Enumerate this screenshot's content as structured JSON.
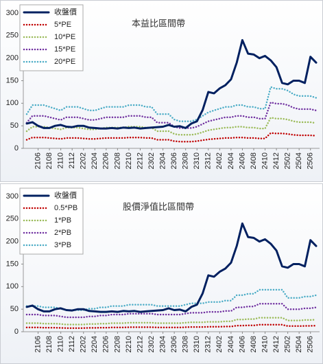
{
  "chart_data": [
    {
      "type": "line",
      "title": "本益比區間帶",
      "categories": [
        null,
        null,
        "2106",
        null,
        "2108",
        null,
        "2110",
        null,
        "2112",
        null,
        "2202",
        null,
        "2204",
        null,
        "2206",
        null,
        "2208",
        null,
        "2210",
        null,
        "2212",
        null,
        "2302",
        null,
        "2304",
        null,
        "2306",
        null,
        "2308",
        null,
        "2310",
        null,
        "2312",
        null,
        "2402",
        null,
        "2404",
        null,
        "2406",
        null,
        "2408",
        null,
        "2410",
        null,
        "2412",
        null,
        "2502",
        null,
        "2504",
        null,
        "2506",
        null
      ],
      "ylim": [
        0,
        300
      ],
      "yticks": [
        0,
        50,
        100,
        150,
        200,
        250,
        300
      ],
      "legend": "upper left",
      "series": [
        {
          "name": "收盤價",
          "color": "#002060",
          "line_style": "solid",
          "values": [
            55,
            58,
            50,
            45,
            45,
            50,
            52,
            48,
            47,
            50,
            50,
            46,
            45,
            44,
            44,
            45,
            44,
            46,
            45,
            46,
            44,
            45,
            46,
            47,
            48,
            52,
            48,
            49,
            45,
            55,
            60,
            85,
            125,
            122,
            133,
            140,
            153,
            190,
            240,
            210,
            208,
            200,
            205,
            195,
            180,
            145,
            142,
            150,
            150,
            145,
            203,
            190
          ]
        },
        {
          "name": "5*PE",
          "color": "#c00000",
          "line_style": "dotted",
          "values": [
            19,
            24,
            24,
            24,
            23,
            22,
            21,
            23,
            23,
            23,
            22,
            21,
            21,
            22,
            23,
            23,
            23,
            23,
            24,
            24,
            24,
            23,
            23,
            19,
            19,
            19,
            16,
            15,
            15,
            15,
            16,
            18,
            20,
            21,
            22,
            23,
            23,
            24,
            24,
            23,
            23,
            22,
            22,
            34,
            33,
            33,
            32,
            30,
            29,
            29,
            29,
            28
          ]
        },
        {
          "name": "10*PE",
          "color": "#9bbb59",
          "line_style": "dotted",
          "values": [
            38,
            48,
            48,
            48,
            46,
            44,
            42,
            46,
            46,
            46,
            44,
            42,
            42,
            44,
            46,
            46,
            46,
            46,
            48,
            48,
            48,
            46,
            46,
            38,
            38,
            38,
            32,
            30,
            30,
            30,
            32,
            36,
            40,
            42,
            44,
            46,
            46,
            48,
            48,
            46,
            46,
            44,
            44,
            68,
            66,
            66,
            64,
            60,
            58,
            58,
            58,
            56
          ]
        },
        {
          "name": "15*PE",
          "color": "#7030a0",
          "line_style": "dotted",
          "values": [
            57,
            72,
            72,
            72,
            69,
            66,
            63,
            69,
            69,
            69,
            66,
            63,
            63,
            66,
            69,
            69,
            69,
            69,
            72,
            72,
            72,
            69,
            69,
            57,
            57,
            57,
            48,
            45,
            45,
            45,
            48,
            54,
            60,
            63,
            66,
            69,
            69,
            72,
            72,
            69,
            69,
            66,
            66,
            102,
            99,
            99,
            96,
            90,
            87,
            87,
            87,
            84
          ]
        },
        {
          "name": "20*PE",
          "color": "#4bacc6",
          "line_style": "dotted",
          "values": [
            76,
            96,
            96,
            96,
            92,
            88,
            84,
            92,
            92,
            92,
            88,
            84,
            84,
            88,
            92,
            92,
            92,
            92,
            96,
            96,
            96,
            92,
            92,
            76,
            76,
            76,
            64,
            60,
            60,
            60,
            64,
            72,
            80,
            84,
            88,
            92,
            92,
            96,
            96,
            92,
            92,
            88,
            88,
            136,
            132,
            132,
            128,
            120,
            116,
            116,
            116,
            112
          ]
        }
      ]
    },
    {
      "type": "line",
      "title": "股價淨值比區間帶",
      "categories": [
        null,
        null,
        "2106",
        null,
        "2108",
        null,
        "2110",
        null,
        "2112",
        null,
        "2202",
        null,
        "2204",
        null,
        "2206",
        null,
        "2208",
        null,
        "2210",
        null,
        "2212",
        null,
        "2302",
        null,
        "2304",
        null,
        "2306",
        null,
        "2308",
        null,
        "2310",
        null,
        "2312",
        null,
        "2402",
        null,
        "2404",
        null,
        "2406",
        null,
        "2408",
        null,
        "2410",
        null,
        "2412",
        null,
        "2502",
        null,
        "2504",
        null,
        "2506",
        null
      ],
      "ylim": [
        0,
        300
      ],
      "yticks": [
        0,
        50,
        100,
        150,
        200,
        250,
        300
      ],
      "legend": "upper left",
      "series": [
        {
          "name": "收盤價",
          "color": "#002060",
          "line_style": "solid",
          "values": [
            55,
            58,
            50,
            45,
            45,
            50,
            52,
            48,
            47,
            50,
            50,
            46,
            45,
            44,
            44,
            45,
            44,
            46,
            45,
            46,
            44,
            45,
            46,
            47,
            48,
            52,
            48,
            49,
            45,
            55,
            60,
            85,
            125,
            122,
            133,
            140,
            153,
            190,
            240,
            210,
            208,
            200,
            205,
            195,
            180,
            145,
            142,
            150,
            150,
            145,
            203,
            190
          ]
        },
        {
          "name": "0.5*PB",
          "color": "#c00000",
          "line_style": "dotted",
          "values": [
            9.5,
            9.5,
            9.5,
            9,
            9,
            9,
            8.5,
            8,
            8,
            8,
            8,
            8.5,
            8.5,
            9,
            9,
            9.5,
            9.5,
            9.5,
            10,
            10,
            10,
            10,
            10,
            9.5,
            9.5,
            9.5,
            9.5,
            9.5,
            10,
            10.5,
            10.5,
            10.5,
            11,
            11,
            11,
            11.5,
            11.5,
            13.5,
            13.5,
            14,
            14,
            15.5,
            15.5,
            15.5,
            15.5,
            15.5,
            12.5,
            12.5,
            12.5,
            13,
            13,
            13.5
          ]
        },
        {
          "name": "1*PB",
          "color": "#9bbb59",
          "line_style": "dotted",
          "values": [
            19,
            19,
            19,
            18,
            18,
            18,
            17,
            16,
            16,
            16,
            16,
            17,
            17,
            18,
            18,
            19,
            19,
            19,
            20,
            20,
            20,
            20,
            20,
            19,
            19,
            19,
            19,
            19,
            20,
            21,
            21,
            21,
            22,
            22,
            22,
            23,
            23,
            27,
            27,
            28,
            28,
            31,
            31,
            31,
            31,
            31,
            25,
            25,
            25,
            26,
            26,
            27
          ]
        },
        {
          "name": "2*PB",
          "color": "#7030a0",
          "line_style": "dotted",
          "values": [
            38,
            38,
            38,
            36,
            36,
            36,
            34,
            32,
            32,
            32,
            32,
            34,
            34,
            36,
            36,
            38,
            38,
            38,
            40,
            40,
            40,
            40,
            40,
            38,
            38,
            38,
            38,
            38,
            40,
            42,
            42,
            42,
            44,
            44,
            44,
            46,
            46,
            54,
            54,
            56,
            56,
            62,
            62,
            62,
            62,
            62,
            50,
            50,
            50,
            52,
            52,
            54
          ]
        },
        {
          "name": "3*PB",
          "color": "#4bacc6",
          "line_style": "dotted",
          "values": [
            57,
            57,
            57,
            54,
            54,
            54,
            51,
            48,
            48,
            48,
            48,
            51,
            51,
            54,
            54,
            57,
            57,
            57,
            60,
            60,
            60,
            60,
            60,
            57,
            57,
            57,
            57,
            57,
            60,
            63,
            63,
            63,
            66,
            66,
            66,
            69,
            69,
            81,
            81,
            84,
            84,
            93,
            93,
            93,
            93,
            93,
            75,
            75,
            75,
            78,
            78,
            81
          ]
        }
      ]
    }
  ]
}
